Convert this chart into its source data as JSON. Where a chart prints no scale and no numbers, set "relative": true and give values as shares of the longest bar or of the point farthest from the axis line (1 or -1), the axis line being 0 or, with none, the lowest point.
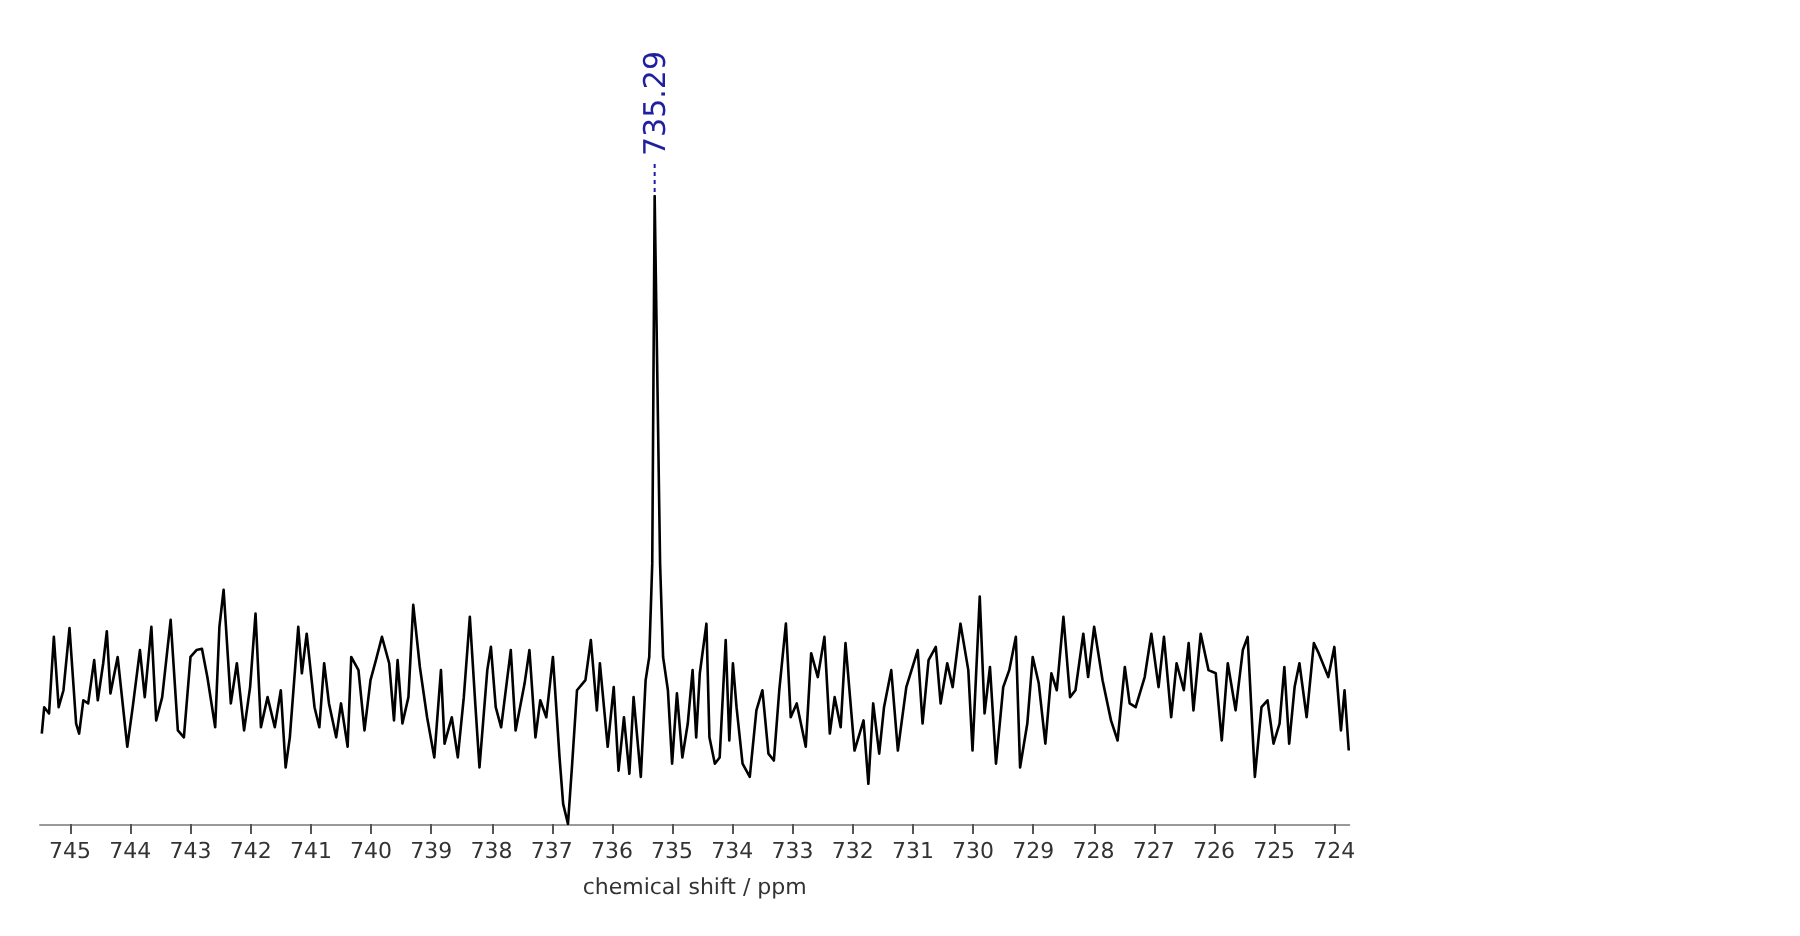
{
  "chart_data": {
    "type": "line",
    "xlabel": "chemical shift / ppm",
    "relative": true,
    "marker": "none",
    "line_style": "solid",
    "xlim": [
      745.5,
      723.75
    ],
    "xticks": [
      745,
      744,
      743,
      742,
      741,
      740,
      739,
      738,
      737,
      736,
      735,
      734,
      733,
      732,
      731,
      730,
      729,
      728,
      727,
      726,
      725,
      724
    ],
    "annotations": [
      {
        "text": "735.29",
        "x": 735.29,
        "y": 1
      }
    ],
    "series": [
      {
        "color": "#000000",
        "x": [
          745.47,
          745.43,
          745.35,
          745.27,
          745.19,
          745.11,
          745.01,
          744.9,
          744.85,
          744.78,
          744.7,
          744.6,
          744.54,
          744.45,
          744.39,
          744.33,
          744.21,
          744.05,
          743.96,
          743.84,
          743.76,
          743.65,
          743.57,
          743.47,
          743.33,
          743.21,
          743.11,
          743.0,
          742.9,
          742.81,
          742.72,
          742.59,
          742.52,
          742.45,
          742.33,
          742.23,
          742.11,
          742.01,
          741.92,
          741.83,
          741.72,
          741.6,
          741.5,
          741.42,
          741.35,
          741.21,
          741.15,
          741.07,
          740.94,
          740.86,
          740.78,
          740.7,
          740.58,
          740.5,
          740.39,
          740.33,
          740.21,
          740.11,
          740.01,
          739.92,
          739.82,
          739.7,
          739.62,
          739.56,
          739.48,
          739.38,
          739.3,
          739.19,
          739.07,
          738.95,
          738.84,
          738.78,
          738.66,
          738.56,
          738.46,
          738.36,
          738.27,
          738.2,
          738.07,
          738.01,
          737.93,
          737.84,
          737.68,
          737.6,
          737.45,
          737.37,
          737.27,
          737.19,
          737.09,
          736.98,
          736.87,
          736.81,
          736.73,
          736.66,
          736.58,
          736.44,
          736.35,
          736.25,
          736.2,
          736.07,
          735.97,
          735.89,
          735.8,
          735.71,
          735.64,
          735.52,
          735.44,
          735.38,
          735.33,
          735.29,
          735.2,
          735.15,
          735.07,
          735.0,
          734.92,
          734.83,
          734.74,
          734.66,
          734.6,
          734.54,
          734.43,
          734.38,
          734.29,
          734.21,
          734.11,
          734.05,
          733.99,
          733.93,
          733.83,
          733.71,
          733.6,
          733.5,
          733.4,
          733.31,
          733.22,
          733.11,
          733.03,
          732.93,
          732.78,
          732.69,
          732.58,
          732.47,
          732.38,
          732.3,
          732.2,
          732.12,
          731.97,
          731.82,
          731.74,
          731.66,
          731.56,
          731.48,
          731.36,
          731.25,
          731.11,
          730.92,
          730.84,
          730.74,
          730.62,
          730.54,
          730.43,
          730.34,
          730.21,
          730.08,
          730.01,
          729.89,
          729.81,
          729.72,
          729.62,
          729.5,
          729.4,
          729.29,
          729.22,
          729.1,
          729.01,
          728.91,
          728.8,
          728.7,
          728.61,
          728.5,
          728.39,
          728.3,
          728.17,
          728.09,
          727.99,
          727.85,
          727.71,
          727.6,
          727.48,
          727.4,
          727.3,
          727.15,
          727.04,
          726.92,
          726.83,
          726.71,
          726.62,
          726.5,
          726.42,
          726.34,
          726.22,
          726.09,
          725.97,
          725.87,
          725.77,
          725.64,
          725.52,
          725.44,
          725.32,
          725.21,
          725.11,
          725.01,
          724.91,
          724.83,
          724.75,
          724.66,
          724.58,
          724.46,
          724.34,
          724.26,
          724.1,
          724.0,
          723.89,
          723.83,
          723.76
        ],
        "values": [
          0.144,
          0.186,
          0.176,
          0.298,
          0.186,
          0.213,
          0.312,
          0.16,
          0.144,
          0.197,
          0.192,
          0.261,
          0.197,
          0.256,
          0.307,
          0.208,
          0.266,
          0.123,
          0.186,
          0.277,
          0.202,
          0.314,
          0.165,
          0.202,
          0.325,
          0.149,
          0.138,
          0.266,
          0.277,
          0.279,
          0.234,
          0.154,
          0.314,
          0.373,
          0.192,
          0.256,
          0.149,
          0.218,
          0.335,
          0.154,
          0.202,
          0.154,
          0.213,
          0.09,
          0.138,
          0.314,
          0.24,
          0.303,
          0.186,
          0.154,
          0.256,
          0.192,
          0.138,
          0.192,
          0.123,
          0.266,
          0.245,
          0.149,
          0.229,
          0.261,
          0.298,
          0.256,
          0.165,
          0.261,
          0.16,
          0.202,
          0.349,
          0.25,
          0.17,
          0.106,
          0.245,
          0.128,
          0.17,
          0.106,
          0.202,
          0.33,
          0.192,
          0.09,
          0.245,
          0.282,
          0.186,
          0.154,
          0.277,
          0.149,
          0.224,
          0.277,
          0.138,
          0.197,
          0.17,
          0.266,
          0.106,
          0.032,
          0,
          0.096,
          0.213,
          0.229,
          0.293,
          0.181,
          0.256,
          0.123,
          0.218,
          0.085,
          0.17,
          0.08,
          0.202,
          0.075,
          0.229,
          0.266,
          0.415,
          1,
          0.415,
          0.266,
          0.213,
          0.096,
          0.208,
          0.106,
          0.16,
          0.245,
          0.138,
          0.24,
          0.319,
          0.138,
          0.096,
          0.106,
          0.293,
          0.133,
          0.256,
          0.186,
          0.096,
          0.075,
          0.181,
          0.213,
          0.112,
          0.101,
          0.213,
          0.319,
          0.17,
          0.192,
          0.123,
          0.272,
          0.234,
          0.298,
          0.144,
          0.202,
          0.154,
          0.288,
          0.117,
          0.165,
          0.064,
          0.192,
          0.112,
          0.186,
          0.245,
          0.117,
          0.218,
          0.277,
          0.16,
          0.261,
          0.282,
          0.192,
          0.256,
          0.218,
          0.319,
          0.245,
          0.117,
          0.362,
          0.176,
          0.25,
          0.096,
          0.218,
          0.245,
          0.298,
          0.09,
          0.16,
          0.266,
          0.224,
          0.128,
          0.24,
          0.213,
          0.33,
          0.202,
          0.213,
          0.303,
          0.234,
          0.314,
          0.229,
          0.165,
          0.133,
          0.25,
          0.192,
          0.186,
          0.234,
          0.303,
          0.218,
          0.298,
          0.17,
          0.256,
          0.213,
          0.288,
          0.181,
          0.303,
          0.245,
          0.24,
          0.133,
          0.256,
          0.181,
          0.277,
          0.298,
          0.075,
          0.186,
          0.197,
          0.128,
          0.16,
          0.25,
          0.128,
          0.218,
          0.256,
          0.17,
          0.288,
          0.272,
          0.234,
          0.282,
          0.149,
          0.213,
          0.117
        ]
      }
    ]
  }
}
